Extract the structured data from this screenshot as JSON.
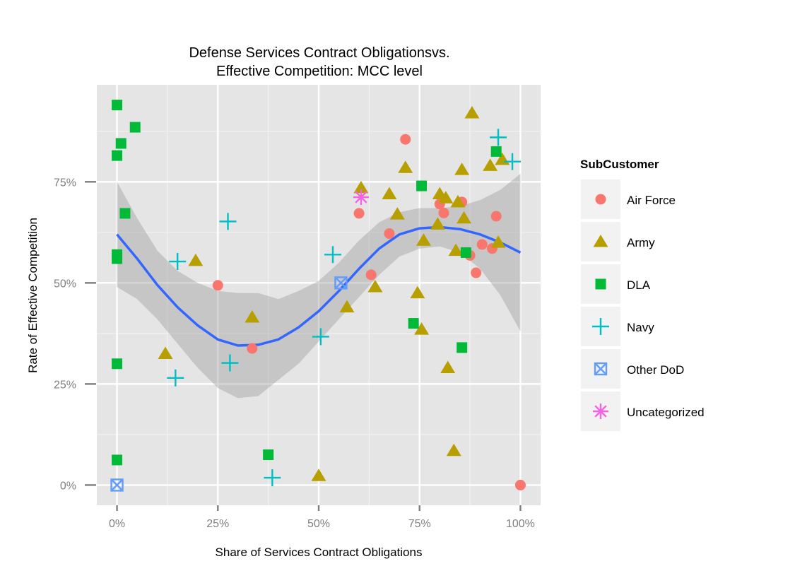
{
  "chart_data": {
    "type": "scatter",
    "title_line1": "Defense Services Contract Obligationsvs.",
    "title_line2": "Effective Competition: MCC level",
    "xlabel": "Share of Services Contract Obligations",
    "ylabel": "Rate of Effective Competition",
    "xlim": [
      -0.05,
      1.05
    ],
    "ylim": [
      -0.05,
      0.99
    ],
    "x_ticks": [
      {
        "value": 0,
        "label": "0%"
      },
      {
        "value": 0.25,
        "label": "25%"
      },
      {
        "value": 0.5,
        "label": "50%"
      },
      {
        "value": 0.75,
        "label": "75%"
      },
      {
        "value": 1,
        "label": "100%"
      }
    ],
    "y_ticks": [
      {
        "value": 0,
        "label": "0%"
      },
      {
        "value": 0.25,
        "label": "25%"
      },
      {
        "value": 0.5,
        "label": "50%"
      },
      {
        "value": 0.75,
        "label": "75%"
      }
    ],
    "grid": true,
    "legend_position": "right",
    "legend_title": "SubCustomer",
    "series": [
      {
        "name": "Air Force",
        "shape": "circle",
        "color": "#F8766D",
        "points": [
          [
            0.25,
            0.494
          ],
          [
            0.335,
            0.338
          ],
          [
            0.6,
            0.672
          ],
          [
            0.63,
            0.52
          ],
          [
            0.675,
            0.622
          ],
          [
            0.715,
            0.855
          ],
          [
            0.8,
            0.695
          ],
          [
            0.81,
            0.673
          ],
          [
            0.855,
            0.7
          ],
          [
            0.875,
            0.568
          ],
          [
            0.89,
            0.525
          ],
          [
            0.905,
            0.595
          ],
          [
            0.93,
            0.585
          ],
          [
            0.94,
            0.665
          ],
          [
            1.0,
            0.0
          ]
        ]
      },
      {
        "name": "Army",
        "shape": "triangle",
        "color": "#B79F00",
        "points": [
          [
            0.12,
            0.325
          ],
          [
            0.195,
            0.555
          ],
          [
            0.335,
            0.415
          ],
          [
            0.5,
            0.023
          ],
          [
            0.57,
            0.44
          ],
          [
            0.605,
            0.735
          ],
          [
            0.64,
            0.49
          ],
          [
            0.675,
            0.72
          ],
          [
            0.695,
            0.67
          ],
          [
            0.715,
            0.785
          ],
          [
            0.745,
            0.475
          ],
          [
            0.755,
            0.385
          ],
          [
            0.76,
            0.605
          ],
          [
            0.795,
            0.645
          ],
          [
            0.8,
            0.72
          ],
          [
            0.815,
            0.71
          ],
          [
            0.82,
            0.29
          ],
          [
            0.835,
            0.085
          ],
          [
            0.84,
            0.58
          ],
          [
            0.845,
            0.7
          ],
          [
            0.855,
            0.78
          ],
          [
            0.86,
            0.66
          ],
          [
            0.88,
            0.92
          ],
          [
            0.925,
            0.79
          ],
          [
            0.945,
            0.6
          ],
          [
            0.955,
            0.805
          ]
        ]
      },
      {
        "name": "DLA",
        "shape": "square",
        "color": "#00BA38",
        "points": [
          [
            0.0,
            0.94
          ],
          [
            0.0,
            0.815
          ],
          [
            0.0,
            0.57
          ],
          [
            0.0,
            0.56
          ],
          [
            0.0,
            0.3
          ],
          [
            0.0,
            0.062
          ],
          [
            0.01,
            0.845
          ],
          [
            0.02,
            0.672
          ],
          [
            0.045,
            0.885
          ],
          [
            0.375,
            0.075
          ],
          [
            0.735,
            0.4
          ],
          [
            0.755,
            0.74
          ],
          [
            0.855,
            0.34
          ],
          [
            0.865,
            0.575
          ],
          [
            0.94,
            0.825
          ]
        ]
      },
      {
        "name": "Navy",
        "shape": "plus",
        "color": "#00BFC4",
        "points": [
          [
            0.145,
            0.265
          ],
          [
            0.15,
            0.553
          ],
          [
            0.275,
            0.652
          ],
          [
            0.28,
            0.302
          ],
          [
            0.385,
            0.018
          ],
          [
            0.505,
            0.367
          ],
          [
            0.535,
            0.57
          ],
          [
            0.945,
            0.86
          ],
          [
            0.98,
            0.8
          ]
        ]
      },
      {
        "name": "Other DoD",
        "shape": "boxcross",
        "color": "#619CFF",
        "points": [
          [
            0.0,
            0.0
          ],
          [
            0.555,
            0.5
          ]
        ]
      },
      {
        "name": "Uncategorized",
        "shape": "asterisk",
        "color": "#F564E3",
        "points": [
          [
            0.605,
            0.712
          ]
        ]
      }
    ],
    "smooth": {
      "color": "#3366FF",
      "band_color": "#999999",
      "x": [
        0,
        0.05,
        0.1,
        0.15,
        0.2,
        0.25,
        0.3,
        0.35,
        0.4,
        0.45,
        0.5,
        0.55,
        0.6,
        0.65,
        0.7,
        0.75,
        0.8,
        0.85,
        0.9,
        0.95,
        1.0
      ],
      "fit": [
        0.62,
        0.56,
        0.495,
        0.44,
        0.395,
        0.36,
        0.345,
        0.347,
        0.36,
        0.39,
        0.43,
        0.48,
        0.535,
        0.585,
        0.62,
        0.635,
        0.638,
        0.633,
        0.62,
        0.6,
        0.575
      ],
      "lower": [
        0.49,
        0.46,
        0.41,
        0.35,
        0.29,
        0.24,
        0.215,
        0.22,
        0.26,
        0.3,
        0.355,
        0.41,
        0.465,
        0.52,
        0.565,
        0.585,
        0.59,
        0.575,
        0.535,
        0.47,
        0.38
      ],
      "upper": [
        0.75,
        0.66,
        0.58,
        0.53,
        0.5,
        0.48,
        0.475,
        0.475,
        0.46,
        0.48,
        0.505,
        0.55,
        0.605,
        0.65,
        0.675,
        0.685,
        0.685,
        0.69,
        0.705,
        0.73,
        0.77
      ]
    }
  }
}
